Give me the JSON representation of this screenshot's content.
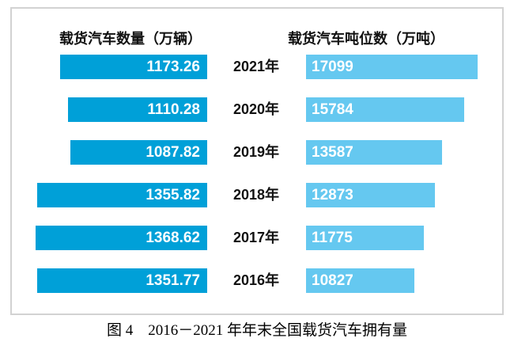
{
  "figure": {
    "caption": "图 4　2016－2021 年年末全国载货汽车拥有量"
  },
  "chart_data": {
    "type": "bar",
    "subtype": "tornado-paired-horizontal",
    "categories": [
      "2021年",
      "2020年",
      "2019年",
      "2018年",
      "2017年",
      "2016年"
    ],
    "series": [
      {
        "name": "载货汽车数量（万辆）",
        "side": "left",
        "values": [
          1173.26,
          1110.28,
          1087.82,
          1355.82,
          1368.62,
          1351.77
        ],
        "labels": [
          "1173.26",
          "1110.28",
          "1087.82",
          "1355.82",
          "1368.62",
          "1351.77"
        ],
        "color": "#00a0d8",
        "label_color": "#ffffff",
        "axis_min": 0
      },
      {
        "name": "载货汽车吨位数（万吨）",
        "side": "right",
        "values": [
          17099,
          15784,
          13587,
          12873,
          11775,
          10827
        ],
        "labels": [
          "17099",
          "15784",
          "13587",
          "12873",
          "11775",
          "10827"
        ],
        "color": "#65c8f0",
        "label_color": "#ffffff",
        "axis_min": 0
      }
    ],
    "title": "",
    "legend_position": "top-as-column-headers",
    "grid": false,
    "value_labels_inside_bars": true,
    "category_labels_position": "center-between-series"
  }
}
